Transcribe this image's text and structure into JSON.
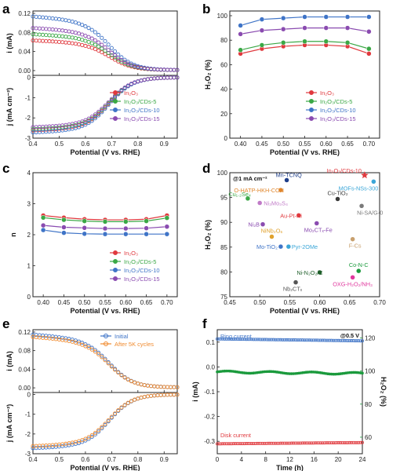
{
  "panels": {
    "a": {
      "letter": "a"
    },
    "b": {
      "letter": "b"
    },
    "c": {
      "letter": "c"
    },
    "d": {
      "letter": "d"
    },
    "e": {
      "letter": "e"
    },
    "f": {
      "letter": "f"
    }
  },
  "colors": {
    "In2O3": "#e0393e",
    "CDs5": "#3aa845",
    "CDs10": "#3f74c7",
    "CDs15": "#8a4bb0",
    "initial": "#3f74c7",
    "after": "#f08a2e",
    "ring": "#3f74c7",
    "h2o2": "#1a9a3c",
    "disk": "#e0393e"
  },
  "chart_data": [
    {
      "id": "a",
      "type": "line",
      "title": "",
      "xlabel": "Potential (V vs. RHE)",
      "ylabel_top": "i (mA)",
      "ylabel_bottom": "j (mA cm⁻²)",
      "xlim": [
        0.4,
        0.95
      ],
      "xticks": [
        "0.4",
        "0.5",
        "0.6",
        "0.7",
        "0.8",
        "0.9"
      ],
      "top_ylim": [
        -0.01,
        0.125
      ],
      "top_yticks": [
        "0.12",
        "0.08",
        "0.04",
        "0.00"
      ],
      "bottom_ylim": [
        -3.0,
        0.1
      ],
      "bottom_yticks": [
        "0",
        "-1",
        "-2",
        "-3"
      ],
      "legend": [
        "In₂O₃",
        "In₂O₃/CDs-5",
        "In₂O₃/CDs-10",
        "In₂O₃/CDs-15"
      ],
      "legend_position": "bottom-right",
      "series": [
        {
          "name": "In₂O₃",
          "ring_plateau": 0.062,
          "disk_plateau": -2.55
        },
        {
          "name": "In₂O₃/CDs-5",
          "ring_plateau": 0.075,
          "disk_plateau": -2.5
        },
        {
          "name": "In₂O₃/CDs-10",
          "ring_plateau": 0.112,
          "disk_plateau": -2.65
        },
        {
          "name": "In₂O₃/CDs-15",
          "ring_plateau": 0.088,
          "disk_plateau": -2.4
        }
      ]
    },
    {
      "id": "b",
      "type": "line",
      "title": "",
      "xlabel": "Potential (V vs. RHE)",
      "ylabel": "H₂O₂ (%)",
      "xlim": [
        0.375,
        0.725
      ],
      "ylim": [
        0,
        100
      ],
      "xticks": [
        "0.40",
        "0.45",
        "0.50",
        "0.55",
        "0.60",
        "0.65",
        "0.70"
      ],
      "yticks": [
        "0",
        "20",
        "40",
        "60",
        "80",
        "100"
      ],
      "x": [
        0.4,
        0.45,
        0.5,
        0.55,
        0.6,
        0.65,
        0.7
      ],
      "legend": [
        "In₂O₃",
        "In₂O₃/CDs-5",
        "In₂O₃/CDs-10",
        "In₂O₃/CDs-15"
      ],
      "legend_position": "bottom-right",
      "series": [
        {
          "name": "In₂O₃",
          "values": [
            69,
            73,
            75,
            76,
            76,
            75,
            69
          ]
        },
        {
          "name": "In₂O₃/CDs-5",
          "values": [
            72,
            76,
            78,
            79,
            79,
            78,
            73
          ]
        },
        {
          "name": "In₂O₃/CDs-10",
          "values": [
            92,
            97,
            98,
            99,
            99,
            99,
            99
          ]
        },
        {
          "name": "In₂O₃/CDs-15",
          "values": [
            85,
            88,
            89,
            90,
            90,
            90,
            87
          ]
        }
      ]
    },
    {
      "id": "c",
      "type": "line",
      "title": "",
      "xlabel": "Potential (V vs. RHE)",
      "ylabel": "n",
      "xlim": [
        0.375,
        0.725
      ],
      "ylim": [
        0,
        4
      ],
      "xticks": [
        "0.40",
        "0.45",
        "0.50",
        "0.55",
        "0.60",
        "0.65",
        "0.70"
      ],
      "yticks": [
        "0",
        "1",
        "2",
        "3",
        "4"
      ],
      "x": [
        0.4,
        0.45,
        0.5,
        0.55,
        0.6,
        0.65,
        0.7
      ],
      "legend": [
        "In₂O₃",
        "In₂O₃/CDs-5",
        "In₂O₃/CDs-10",
        "In₂O₃/CDs-15"
      ],
      "legend_position": "bottom-right",
      "series": [
        {
          "name": "In₂O₃",
          "values": [
            2.62,
            2.55,
            2.5,
            2.48,
            2.48,
            2.5,
            2.62
          ]
        },
        {
          "name": "In₂O₃/CDs-5",
          "values": [
            2.55,
            2.48,
            2.44,
            2.42,
            2.42,
            2.44,
            2.54
          ]
        },
        {
          "name": "In₂O₃/CDs-10",
          "values": [
            2.15,
            2.06,
            2.03,
            2.02,
            2.02,
            2.02,
            2.02
          ]
        },
        {
          "name": "In₂O₃/CDs-15",
          "values": [
            2.3,
            2.24,
            2.22,
            2.2,
            2.2,
            2.21,
            2.26
          ]
        }
      ]
    },
    {
      "id": "d",
      "type": "scatter",
      "title": "",
      "xlabel": "Potential (V vs. RHE)",
      "ylabel": "H₂O₂ (%)",
      "xlim": [
        0.45,
        0.7
      ],
      "ylim": [
        75,
        100
      ],
      "xticks": [
        "0.45",
        "0.50",
        "0.55",
        "0.60",
        "0.65",
        "0.70"
      ],
      "yticks": [
        "75",
        "80",
        "85",
        "90",
        "95",
        "100"
      ],
      "header": "@1 mA cm⁻²",
      "points": [
        {
          "label": "In₂O₃/CDs-10",
          "x": 0.675,
          "y": 99.5,
          "color": "#e0393e",
          "marker": "star"
        },
        {
          "label": "Mn-TCNQ",
          "x": 0.545,
          "y": 98.5,
          "color": "#1f3f8a"
        },
        {
          "label": "MOFs-NSs-300",
          "x": 0.69,
          "y": 98.2,
          "color": "#3aa6d8"
        },
        {
          "label": "O-HATP-HKH-CON",
          "x": 0.535,
          "y": 96.5,
          "color": "#e0872e"
        },
        {
          "label": "Cu₁.₂Se₄",
          "x": 0.48,
          "y": 94.8,
          "color": "#3aa845"
        },
        {
          "label": "Ni₃Mo₃S₄",
          "x": 0.5,
          "y": 93.9,
          "color": "#c07ac7"
        },
        {
          "label": "Cu-TiO₂",
          "x": 0.63,
          "y": 94.7,
          "color": "#3a3a3a"
        },
        {
          "label": "Ni-SA/G-0",
          "x": 0.67,
          "y": 93.3,
          "color": "#7a7a7a"
        },
        {
          "label": "Au-Pt-Ni",
          "x": 0.565,
          "y": 91.4,
          "color": "#e0393e"
        },
        {
          "label": "Ni₂B",
          "x": 0.505,
          "y": 89.6,
          "color": "#8a4bb0"
        },
        {
          "label": "Mo₂CTₓ-Fe",
          "x": 0.595,
          "y": 89.8,
          "color": "#8a4bb0"
        },
        {
          "label": "NiNb₂O₆",
          "x": 0.52,
          "y": 87.1,
          "color": "#e0a22e"
        },
        {
          "label": "F-Cs",
          "x": 0.655,
          "y": 86.6,
          "color": "#c8a06e"
        },
        {
          "label": "Mo-TiO₂",
          "x": 0.535,
          "y": 85.1,
          "color": "#3f74c7"
        },
        {
          "label": "Pyr-2OMe",
          "x": 0.548,
          "y": 85.1,
          "color": "#3aa6d8"
        },
        {
          "label": "Co-N-C",
          "x": 0.665,
          "y": 80.2,
          "color": "#1a9a3c"
        },
        {
          "label": "Ni-N₂O₂/C",
          "x": 0.6,
          "y": 79.9,
          "color": "#1f5f2a"
        },
        {
          "label": "OXG-H₂O₂/NH₃",
          "x": 0.655,
          "y": 78.9,
          "color": "#e0399e"
        },
        {
          "label": "Nb₂CTₓ",
          "x": 0.56,
          "y": 77.9,
          "color": "#555555"
        }
      ]
    },
    {
      "id": "e",
      "type": "line",
      "title": "",
      "xlabel": "Potential (V vs. RHE)",
      "ylabel_top": "i (mA)",
      "ylabel_bottom": "j (mA cm⁻²)",
      "xlim": [
        0.4,
        0.95
      ],
      "xticks": [
        "0.4",
        "0.5",
        "0.6",
        "0.7",
        "0.8",
        "0.9"
      ],
      "top_ylim": [
        -0.01,
        0.125
      ],
      "top_yticks": [
        "0.12",
        "0.08",
        "0.04",
        "0.00"
      ],
      "bottom_ylim": [
        -3.0,
        0.1
      ],
      "bottom_yticks": [
        "0",
        "-1",
        "-2",
        "-3"
      ],
      "legend": [
        "Initial",
        "After 5K cycles"
      ],
      "legend_position": "top-right",
      "series": [
        {
          "name": "Initial",
          "ring_plateau": 0.113,
          "disk_plateau": -2.65
        },
        {
          "name": "After 5K cycles",
          "ring_plateau": 0.108,
          "disk_plateau": -2.55
        }
      ]
    },
    {
      "id": "f",
      "type": "line",
      "title": "",
      "xlabel": "Time (h)",
      "ylabel": "i (mA)",
      "ylabel_right": "H₂O₂ (%)",
      "xlim": [
        0,
        24
      ],
      "ylim": [
        -0.35,
        0.15
      ],
      "ylim_right": [
        50,
        125
      ],
      "xticks": [
        "0",
        "4",
        "8",
        "12",
        "16",
        "20",
        "24"
      ],
      "yticks": [
        "0.1",
        "0.0",
        "-0.1",
        "-0.2",
        "-0.3"
      ],
      "yticks_right": [
        "60",
        "80",
        "100",
        "120"
      ],
      "header": "@0.5 V",
      "labels": [
        "Ring current",
        "Disk current"
      ],
      "series": [
        {
          "name": "Ring current",
          "start": 0.113,
          "end": 0.105
        },
        {
          "name": "H₂O₂",
          "start": 99.5,
          "end": 98.5
        },
        {
          "name": "Disk current",
          "start": -0.31,
          "end": -0.305
        }
      ]
    }
  ]
}
